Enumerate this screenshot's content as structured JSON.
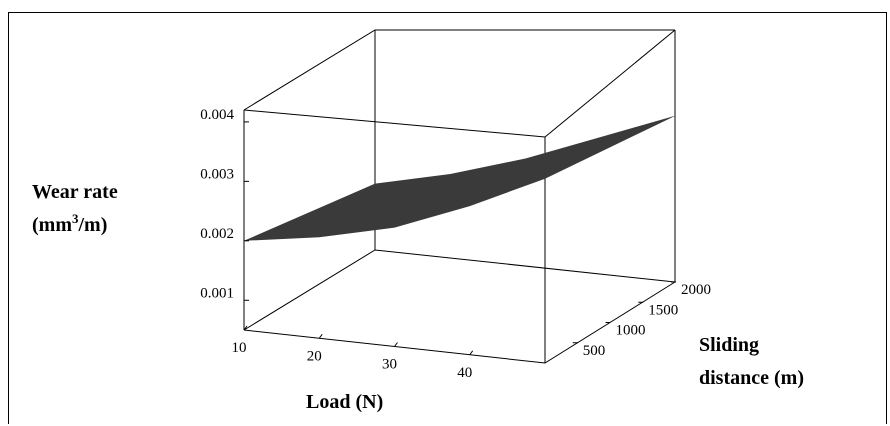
{
  "chart_data": {
    "type": "surface3d",
    "zlabel_line1": "Wear rate",
    "zlabel_line2_prefix": "(mm",
    "zlabel_line2_sup": "3",
    "zlabel_line2_suffix": "/m)",
    "xlabel": "Load (N)",
    "ylabel_line1": "Sliding",
    "ylabel_line2": "distance (m)",
    "xlim": [
      10,
      50
    ],
    "ylim": [
      0,
      2000
    ],
    "zlim": [
      0.0005,
      0.0042
    ],
    "xticks": [
      10,
      20,
      30,
      40
    ],
    "yticks": [
      500,
      1000,
      1500,
      2000
    ],
    "zticks": [
      "0.001",
      "0.002",
      "0.003",
      "0.004"
    ],
    "zticks_values": [
      0.001,
      0.002,
      0.003,
      0.004
    ],
    "surface": {
      "x": [
        10,
        20,
        30,
        40,
        50
      ],
      "y": [
        0,
        500,
        1000,
        1500,
        2000
      ],
      "z_at_y_min": [
        0.002,
        0.0022,
        0.0025,
        0.003,
        0.0036
      ],
      "z_at_y_max": [
        0.0016,
        0.0019,
        0.0023,
        0.0028,
        0.0033
      ]
    },
    "colors": {
      "surface": "#3a3a3a",
      "box": "#000000"
    },
    "grid": false,
    "legend": "none"
  }
}
